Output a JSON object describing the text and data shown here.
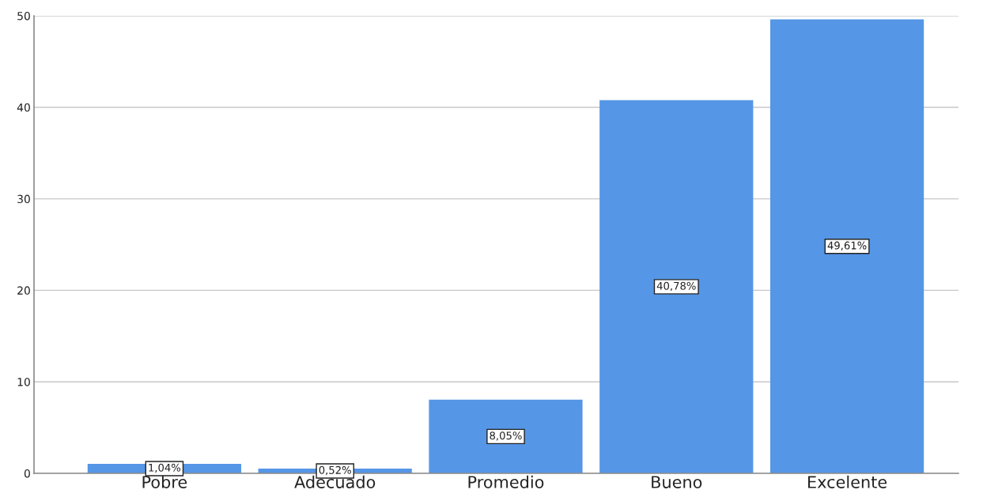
{
  "chart_data": {
    "type": "bar",
    "categories": [
      "Pobre",
      "Adecuado",
      "Promedio",
      "Bueno",
      "Excelente"
    ],
    "values": [
      1.04,
      0.52,
      8.05,
      40.78,
      49.61
    ],
    "value_labels": [
      "1,04%",
      "0,52%",
      "8,05%",
      "40,78%",
      "49,61%"
    ],
    "color": "#5596e6",
    "ylim": [
      0,
      50
    ],
    "yticks": [
      0,
      10,
      20,
      30,
      40,
      50
    ],
    "grid": "y"
  }
}
